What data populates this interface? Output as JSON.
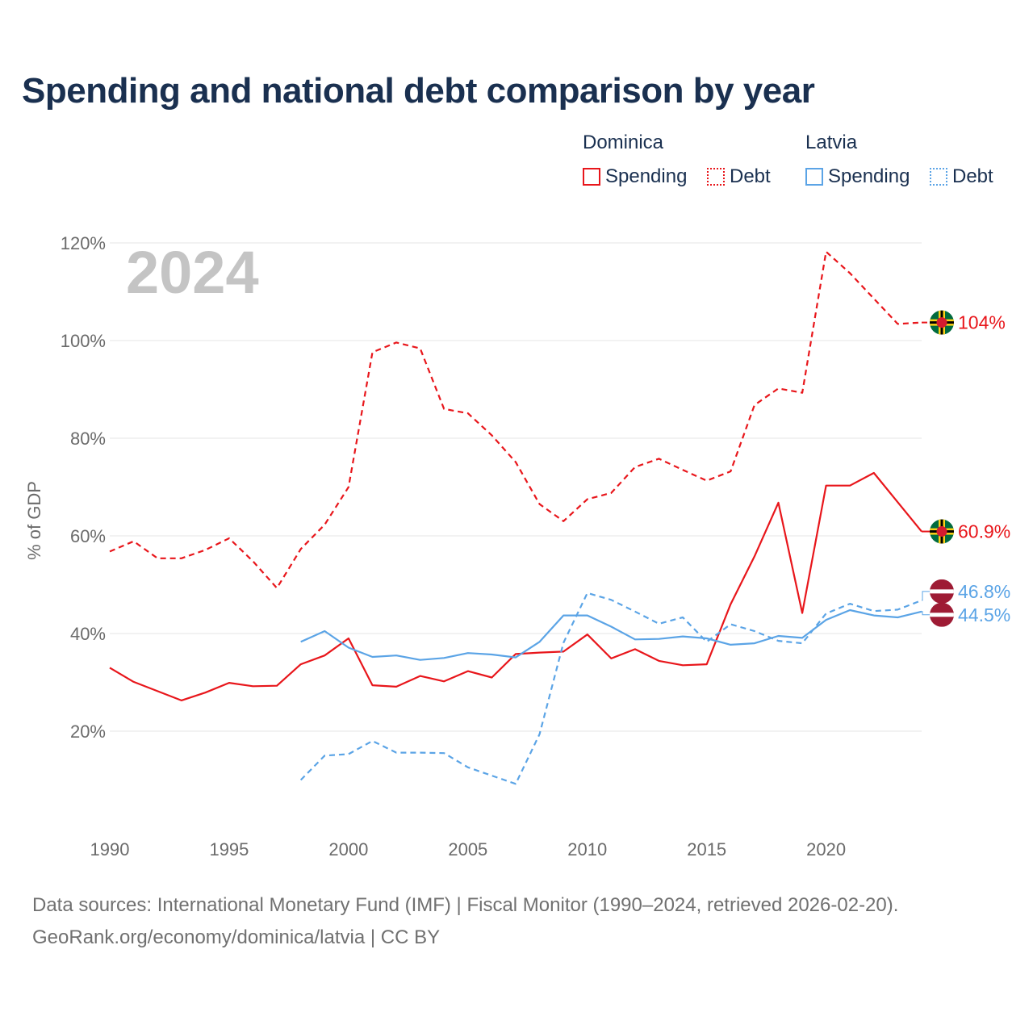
{
  "title": "Spending and national debt comparison by year",
  "legend": {
    "groups": [
      {
        "name": "Dominica",
        "spending_label": "Spending",
        "debt_label": "Debt",
        "color": "#e8161b"
      },
      {
        "name": "Latvia",
        "spending_label": "Spending",
        "debt_label": "Debt",
        "color": "#5ba4e6"
      }
    ]
  },
  "year_watermark": "2024",
  "footer": {
    "sources": "Data sources: International Monetary Fund (IMF) | Fiscal Monitor (1990–2024, retrieved 2026-02-20).",
    "credit": "GeoRank.org/economy/dominica/latvia | CC BY"
  },
  "chart_data": {
    "type": "line",
    "title": "Spending and national debt comparison by year",
    "xlabel": "",
    "ylabel": "% of GDP",
    "xlim": [
      1990,
      2024
    ],
    "ylim": [
      0,
      120
    ],
    "yticks": [
      20,
      40,
      60,
      80,
      100,
      120
    ],
    "ytick_labels": [
      "20%",
      "40%",
      "60%",
      "80%",
      "100%",
      "120%"
    ],
    "xticks": [
      1990,
      1995,
      2000,
      2005,
      2010,
      2015,
      2020
    ],
    "xtick_labels": [
      "1990",
      "1995",
      "2000",
      "2005",
      "2010",
      "2015",
      "2020"
    ],
    "grid": true,
    "series": [
      {
        "name": "Dominica Spending",
        "country": "Dominica",
        "indicator": "Spending",
        "color": "#e8161b",
        "dash": false,
        "end_label": "60.9%",
        "x": [
          1990,
          1991,
          1992,
          1993,
          1994,
          1995,
          1996,
          1997,
          1998,
          1999,
          2000,
          2001,
          2002,
          2003,
          2004,
          2005,
          2006,
          2007,
          2008,
          2009,
          2010,
          2011,
          2012,
          2013,
          2014,
          2015,
          2016,
          2017,
          2018,
          2019,
          2020,
          2021,
          2022,
          2023,
          2024
        ],
        "values": [
          33.0,
          30.1,
          28.2,
          26.3,
          27.9,
          29.9,
          29.2,
          29.3,
          33.7,
          35.5,
          39.0,
          29.4,
          29.1,
          31.3,
          30.2,
          32.3,
          31.0,
          35.8,
          36.1,
          36.3,
          39.8,
          34.9,
          36.8,
          34.4,
          33.5,
          33.7,
          46.0,
          55.8,
          66.8,
          44.2,
          70.3,
          70.3,
          72.9,
          66.9,
          60.9
        ]
      },
      {
        "name": "Dominica Debt",
        "country": "Dominica",
        "indicator": "Debt",
        "color": "#e8161b",
        "dash": true,
        "end_label": "104%",
        "x": [
          1990,
          1991,
          1992,
          1993,
          1994,
          1995,
          1996,
          1997,
          1998,
          1999,
          2000,
          2001,
          2002,
          2003,
          2004,
          2005,
          2006,
          2007,
          2008,
          2009,
          2010,
          2011,
          2012,
          2013,
          2014,
          2015,
          2016,
          2017,
          2018,
          2019,
          2020,
          2021,
          2022,
          2023,
          2024
        ],
        "values": [
          56.8,
          58.9,
          55.4,
          55.4,
          57.1,
          59.5,
          54.8,
          49.3,
          57.3,
          62.3,
          70.0,
          97.6,
          99.6,
          98.4,
          86.0,
          85.1,
          80.6,
          75.1,
          66.5,
          63.0,
          67.5,
          68.8,
          74.1,
          75.8,
          73.5,
          71.3,
          73.2,
          86.8,
          90.2,
          89.3,
          118.2,
          113.8,
          108.6,
          103.4,
          103.7
        ]
      },
      {
        "name": "Latvia Spending",
        "country": "Latvia",
        "indicator": "Spending",
        "color": "#5ba4e6",
        "dash": false,
        "end_label": "44.5%",
        "x": [
          1998,
          1999,
          2000,
          2001,
          2002,
          2003,
          2004,
          2005,
          2006,
          2007,
          2008,
          2009,
          2010,
          2011,
          2012,
          2013,
          2014,
          2015,
          2016,
          2017,
          2018,
          2019,
          2020,
          2021,
          2022,
          2023,
          2024
        ],
        "values": [
          38.3,
          40.5,
          37.1,
          35.2,
          35.5,
          34.6,
          35.0,
          36.0,
          35.7,
          35.1,
          38.3,
          43.7,
          43.7,
          41.4,
          38.8,
          38.9,
          39.4,
          39.0,
          37.7,
          38.0,
          39.5,
          39.1,
          42.8,
          44.8,
          43.7,
          43.3,
          44.5
        ]
      },
      {
        "name": "Latvia Debt",
        "country": "Latvia",
        "indicator": "Debt",
        "color": "#5ba4e6",
        "dash": true,
        "end_label": "46.8%",
        "x": [
          1998,
          1999,
          2000,
          2001,
          2002,
          2003,
          2004,
          2005,
          2006,
          2007,
          2008,
          2009,
          2010,
          2011,
          2012,
          2013,
          2014,
          2015,
          2016,
          2017,
          2018,
          2019,
          2020,
          2021,
          2022,
          2023,
          2024
        ],
        "values": [
          10.0,
          15.0,
          15.3,
          18.0,
          15.6,
          15.6,
          15.5,
          12.6,
          10.9,
          9.2,
          19.4,
          38.1,
          48.3,
          46.9,
          44.5,
          42.0,
          43.3,
          38.3,
          41.9,
          40.5,
          38.5,
          38.0,
          44.1,
          46.1,
          44.6,
          44.9,
          46.8
        ]
      }
    ]
  }
}
